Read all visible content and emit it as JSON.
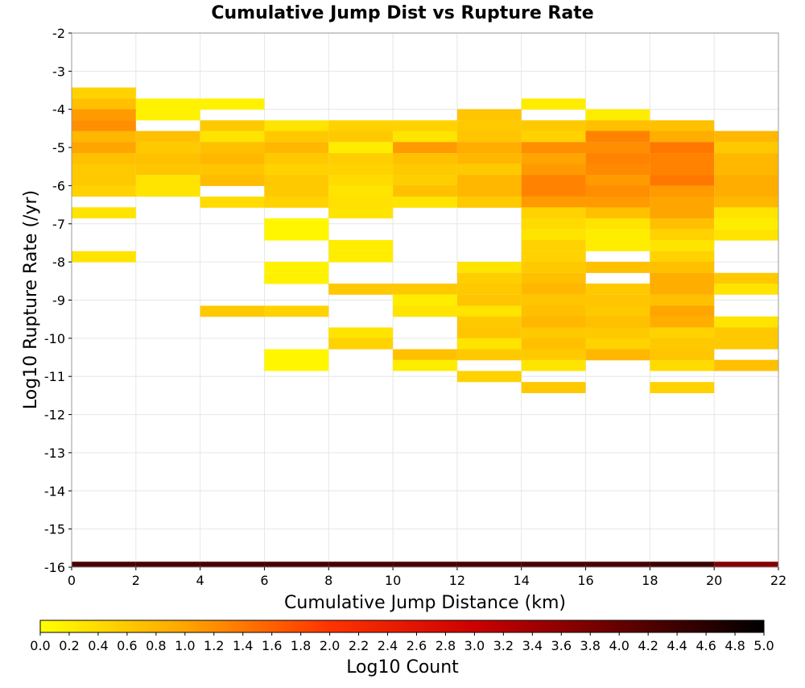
{
  "chart_data": {
    "type": "heatmap",
    "title": "Cumulative Jump Dist vs Rupture Rate",
    "xlabel": "Cumulative Jump Distance (km)",
    "ylabel": "Log10 Rupture Rate (/yr)",
    "xlim": [
      0,
      22
    ],
    "ylim": [
      -16,
      -2
    ],
    "x_ticks": [
      "0",
      "2",
      "4",
      "6",
      "8",
      "10",
      "12",
      "14",
      "16",
      "18",
      "20",
      "22"
    ],
    "y_ticks": [
      "-2",
      "-3",
      "-4",
      "-5",
      "-6",
      "-7",
      "-8",
      "-9",
      "-10",
      "-11",
      "-12",
      "-13",
      "-14",
      "-15",
      "-16"
    ],
    "grid": true,
    "bin_width_x": 2,
    "bin_height_y": 0.2857,
    "colorbar": {
      "label": "Log10 Count",
      "range": [
        0,
        5
      ],
      "ticks": [
        "0.0",
        "0.2",
        "0.4",
        "0.6",
        "0.8",
        "1.0",
        "1.2",
        "1.4",
        "1.6",
        "1.8",
        "2.0",
        "2.2",
        "2.4",
        "2.6",
        "2.8",
        "3.0",
        "3.2",
        "3.4",
        "3.6",
        "3.8",
        "4.0",
        "4.2",
        "4.4",
        "4.6",
        "4.8",
        "5.0"
      ],
      "colors": [
        "#ffff00",
        "#ffa500",
        "#ff3300",
        "#cc0000",
        "#660000",
        "#000000"
      ]
    },
    "cells": [
      {
        "x": 0,
        "y": -3.57,
        "v": 0.5
      },
      {
        "x": 0,
        "y": -3.86,
        "v": 0.7
      },
      {
        "x": 0,
        "y": -4.14,
        "v": 1.1
      },
      {
        "x": 0,
        "y": -4.43,
        "v": 1.2
      },
      {
        "x": 0,
        "y": -4.71,
        "v": 0.8
      },
      {
        "x": 0,
        "y": -5.0,
        "v": 1.0
      },
      {
        "x": 0,
        "y": -5.29,
        "v": 0.7
      },
      {
        "x": 0,
        "y": -5.57,
        "v": 0.6
      },
      {
        "x": 0,
        "y": -5.86,
        "v": 0.6
      },
      {
        "x": 0,
        "y": -6.14,
        "v": 0.5
      },
      {
        "x": 0,
        "y": -6.71,
        "v": 0.3
      },
      {
        "x": 0,
        "y": -7.86,
        "v": 0.3
      },
      {
        "x": 0,
        "y": -16.0,
        "v": 4.3
      },
      {
        "x": 2,
        "y": -3.86,
        "v": 0.15
      },
      {
        "x": 2,
        "y": -4.14,
        "v": 0.15
      },
      {
        "x": 2,
        "y": -4.71,
        "v": 0.7
      },
      {
        "x": 2,
        "y": -5.0,
        "v": 0.6
      },
      {
        "x": 2,
        "y": -5.29,
        "v": 0.7
      },
      {
        "x": 2,
        "y": -5.57,
        "v": 0.65
      },
      {
        "x": 2,
        "y": -5.86,
        "v": 0.3
      },
      {
        "x": 2,
        "y": -6.14,
        "v": 0.3
      },
      {
        "x": 2,
        "y": -16.0,
        "v": 4.3
      },
      {
        "x": 4,
        "y": -3.86,
        "v": 0.15
      },
      {
        "x": 4,
        "y": -4.43,
        "v": 0.6
      },
      {
        "x": 4,
        "y": -4.71,
        "v": 0.3
      },
      {
        "x": 4,
        "y": -5.0,
        "v": 0.7
      },
      {
        "x": 4,
        "y": -5.29,
        "v": 0.8
      },
      {
        "x": 4,
        "y": -5.57,
        "v": 0.65
      },
      {
        "x": 4,
        "y": -5.86,
        "v": 0.75
      },
      {
        "x": 4,
        "y": -6.43,
        "v": 0.4
      },
      {
        "x": 4,
        "y": -9.29,
        "v": 0.6
      },
      {
        "x": 4,
        "y": -16.0,
        "v": 4.3
      },
      {
        "x": 6,
        "y": -4.43,
        "v": 0.3
      },
      {
        "x": 6,
        "y": -4.71,
        "v": 0.6
      },
      {
        "x": 6,
        "y": -5.0,
        "v": 0.8
      },
      {
        "x": 6,
        "y": -5.29,
        "v": 0.6
      },
      {
        "x": 6,
        "y": -5.57,
        "v": 0.5
      },
      {
        "x": 6,
        "y": -5.86,
        "v": 0.6
      },
      {
        "x": 6,
        "y": -6.14,
        "v": 0.6
      },
      {
        "x": 6,
        "y": -6.43,
        "v": 0.5
      },
      {
        "x": 6,
        "y": -7.0,
        "v": 0.1
      },
      {
        "x": 6,
        "y": -7.29,
        "v": 0.1
      },
      {
        "x": 6,
        "y": -8.14,
        "v": 0.15
      },
      {
        "x": 6,
        "y": -8.43,
        "v": 0.15
      },
      {
        "x": 6,
        "y": -9.29,
        "v": 0.5
      },
      {
        "x": 6,
        "y": -10.43,
        "v": 0.1
      },
      {
        "x": 6,
        "y": -10.71,
        "v": 0.1
      },
      {
        "x": 6,
        "y": -16.0,
        "v": 4.3
      },
      {
        "x": 8,
        "y": -4.43,
        "v": 0.5
      },
      {
        "x": 8,
        "y": -4.71,
        "v": 0.6
      },
      {
        "x": 8,
        "y": -5.0,
        "v": 0.2
      },
      {
        "x": 8,
        "y": -5.29,
        "v": 0.55
      },
      {
        "x": 8,
        "y": -5.57,
        "v": 0.5
      },
      {
        "x": 8,
        "y": -5.86,
        "v": 0.4
      },
      {
        "x": 8,
        "y": -6.14,
        "v": 0.3
      },
      {
        "x": 8,
        "y": -6.43,
        "v": 0.35
      },
      {
        "x": 8,
        "y": -6.71,
        "v": 0.3
      },
      {
        "x": 8,
        "y": -7.57,
        "v": 0.2
      },
      {
        "x": 8,
        "y": -7.86,
        "v": 0.2
      },
      {
        "x": 8,
        "y": -8.71,
        "v": 0.6
      },
      {
        "x": 8,
        "y": -9.86,
        "v": 0.3
      },
      {
        "x": 8,
        "y": -10.14,
        "v": 0.5
      },
      {
        "x": 8,
        "y": -16.0,
        "v": 4.3
      },
      {
        "x": 10,
        "y": -4.43,
        "v": 0.5
      },
      {
        "x": 10,
        "y": -4.71,
        "v": 0.3
      },
      {
        "x": 10,
        "y": -5.0,
        "v": 1.1
      },
      {
        "x": 10,
        "y": -5.29,
        "v": 0.7
      },
      {
        "x": 10,
        "y": -5.57,
        "v": 0.6
      },
      {
        "x": 10,
        "y": -5.86,
        "v": 0.55
      },
      {
        "x": 10,
        "y": -6.14,
        "v": 0.7
      },
      {
        "x": 10,
        "y": -6.43,
        "v": 0.3
      },
      {
        "x": 10,
        "y": -8.71,
        "v": 0.6
      },
      {
        "x": 10,
        "y": -9.0,
        "v": 0.2
      },
      {
        "x": 10,
        "y": -9.29,
        "v": 0.3
      },
      {
        "x": 10,
        "y": -10.43,
        "v": 0.7
      },
      {
        "x": 10,
        "y": -10.71,
        "v": 0.2
      },
      {
        "x": 10,
        "y": -16.0,
        "v": 4.3
      },
      {
        "x": 12,
        "y": -4.14,
        "v": 0.65
      },
      {
        "x": 12,
        "y": -4.43,
        "v": 0.6
      },
      {
        "x": 12,
        "y": -4.71,
        "v": 0.65
      },
      {
        "x": 12,
        "y": -5.0,
        "v": 0.9
      },
      {
        "x": 12,
        "y": -5.29,
        "v": 0.8
      },
      {
        "x": 12,
        "y": -5.57,
        "v": 0.6
      },
      {
        "x": 12,
        "y": -5.86,
        "v": 0.8
      },
      {
        "x": 12,
        "y": -6.14,
        "v": 0.8
      },
      {
        "x": 12,
        "y": -6.43,
        "v": 0.6
      },
      {
        "x": 12,
        "y": -8.14,
        "v": 0.3
      },
      {
        "x": 12,
        "y": -8.43,
        "v": 0.55
      },
      {
        "x": 12,
        "y": -8.71,
        "v": 0.6
      },
      {
        "x": 12,
        "y": -9.0,
        "v": 0.65
      },
      {
        "x": 12,
        "y": -9.29,
        "v": 0.3
      },
      {
        "x": 12,
        "y": -9.57,
        "v": 0.6
      },
      {
        "x": 12,
        "y": -9.86,
        "v": 0.65
      },
      {
        "x": 12,
        "y": -10.14,
        "v": 0.3
      },
      {
        "x": 12,
        "y": -10.43,
        "v": 0.6
      },
      {
        "x": 12,
        "y": -11.0,
        "v": 0.5
      },
      {
        "x": 12,
        "y": -16.0,
        "v": 4.3
      },
      {
        "x": 14,
        "y": -3.86,
        "v": 0.2
      },
      {
        "x": 14,
        "y": -4.43,
        "v": 0.6
      },
      {
        "x": 14,
        "y": -4.71,
        "v": 0.5
      },
      {
        "x": 14,
        "y": -5.0,
        "v": 1.2
      },
      {
        "x": 14,
        "y": -5.29,
        "v": 1.0
      },
      {
        "x": 14,
        "y": -5.57,
        "v": 1.1
      },
      {
        "x": 14,
        "y": -5.86,
        "v": 1.3
      },
      {
        "x": 14,
        "y": -6.14,
        "v": 1.3
      },
      {
        "x": 14,
        "y": -6.43,
        "v": 1.1
      },
      {
        "x": 14,
        "y": -6.71,
        "v": 0.5
      },
      {
        "x": 14,
        "y": -7.0,
        "v": 0.4
      },
      {
        "x": 14,
        "y": -7.29,
        "v": 0.3
      },
      {
        "x": 14,
        "y": -7.57,
        "v": 0.5
      },
      {
        "x": 14,
        "y": -7.86,
        "v": 0.5
      },
      {
        "x": 14,
        "y": -8.14,
        "v": 0.6
      },
      {
        "x": 14,
        "y": -8.43,
        "v": 0.7
      },
      {
        "x": 14,
        "y": -8.71,
        "v": 0.8
      },
      {
        "x": 14,
        "y": -9.0,
        "v": 0.65
      },
      {
        "x": 14,
        "y": -9.29,
        "v": 0.7
      },
      {
        "x": 14,
        "y": -9.57,
        "v": 0.8
      },
      {
        "x": 14,
        "y": -9.86,
        "v": 0.6
      },
      {
        "x": 14,
        "y": -10.14,
        "v": 0.7
      },
      {
        "x": 14,
        "y": -10.43,
        "v": 0.6
      },
      {
        "x": 14,
        "y": -10.71,
        "v": 0.3
      },
      {
        "x": 14,
        "y": -11.29,
        "v": 0.6
      },
      {
        "x": 14,
        "y": -16.0,
        "v": 4.3
      },
      {
        "x": 16,
        "y": -4.14,
        "v": 0.2
      },
      {
        "x": 16,
        "y": -4.43,
        "v": 0.7
      },
      {
        "x": 16,
        "y": -4.71,
        "v": 1.3
      },
      {
        "x": 16,
        "y": -5.0,
        "v": 1.2
      },
      {
        "x": 16,
        "y": -5.29,
        "v": 1.3
      },
      {
        "x": 16,
        "y": -5.57,
        "v": 1.25
      },
      {
        "x": 16,
        "y": -5.86,
        "v": 1.1
      },
      {
        "x": 16,
        "y": -6.14,
        "v": 1.2
      },
      {
        "x": 16,
        "y": -6.43,
        "v": 1.1
      },
      {
        "x": 16,
        "y": -6.71,
        "v": 0.7
      },
      {
        "x": 16,
        "y": -7.0,
        "v": 0.3
      },
      {
        "x": 16,
        "y": -7.29,
        "v": 0.2
      },
      {
        "x": 16,
        "y": -7.57,
        "v": 0.2
      },
      {
        "x": 16,
        "y": -8.14,
        "v": 0.7
      },
      {
        "x": 16,
        "y": -8.71,
        "v": 0.6
      },
      {
        "x": 16,
        "y": -9.0,
        "v": 0.65
      },
      {
        "x": 16,
        "y": -9.29,
        "v": 0.6
      },
      {
        "x": 16,
        "y": -9.57,
        "v": 0.7
      },
      {
        "x": 16,
        "y": -9.86,
        "v": 0.6
      },
      {
        "x": 16,
        "y": -10.14,
        "v": 0.5
      },
      {
        "x": 16,
        "y": -10.43,
        "v": 0.8
      },
      {
        "x": 16,
        "y": -16.0,
        "v": 4.3
      },
      {
        "x": 18,
        "y": -4.43,
        "v": 0.7
      },
      {
        "x": 18,
        "y": -4.71,
        "v": 0.9
      },
      {
        "x": 18,
        "y": -5.0,
        "v": 1.4
      },
      {
        "x": 18,
        "y": -5.29,
        "v": 1.3
      },
      {
        "x": 18,
        "y": -5.57,
        "v": 1.3
      },
      {
        "x": 18,
        "y": -5.86,
        "v": 1.4
      },
      {
        "x": 18,
        "y": -6.14,
        "v": 1.1
      },
      {
        "x": 18,
        "y": -6.43,
        "v": 1.0
      },
      {
        "x": 18,
        "y": -6.71,
        "v": 1.0
      },
      {
        "x": 18,
        "y": -7.0,
        "v": 0.7
      },
      {
        "x": 18,
        "y": -7.29,
        "v": 0.5
      },
      {
        "x": 18,
        "y": -7.57,
        "v": 0.3
      },
      {
        "x": 18,
        "y": -7.86,
        "v": 0.5
      },
      {
        "x": 18,
        "y": -8.14,
        "v": 0.7
      },
      {
        "x": 18,
        "y": -8.43,
        "v": 0.9
      },
      {
        "x": 18,
        "y": -8.71,
        "v": 0.9
      },
      {
        "x": 18,
        "y": -9.0,
        "v": 0.7
      },
      {
        "x": 18,
        "y": -9.29,
        "v": 1.0
      },
      {
        "x": 18,
        "y": -9.57,
        "v": 0.9
      },
      {
        "x": 18,
        "y": -9.86,
        "v": 0.5
      },
      {
        "x": 18,
        "y": -10.14,
        "v": 0.6
      },
      {
        "x": 18,
        "y": -10.43,
        "v": 0.65
      },
      {
        "x": 18,
        "y": -10.71,
        "v": 0.4
      },
      {
        "x": 18,
        "y": -11.29,
        "v": 0.5
      },
      {
        "x": 18,
        "y": -16.0,
        "v": 4.4
      },
      {
        "x": 20,
        "y": -4.71,
        "v": 0.8
      },
      {
        "x": 20,
        "y": -5.0,
        "v": 0.6
      },
      {
        "x": 20,
        "y": -5.29,
        "v": 0.8
      },
      {
        "x": 20,
        "y": -5.57,
        "v": 0.8
      },
      {
        "x": 20,
        "y": -5.86,
        "v": 0.9
      },
      {
        "x": 20,
        "y": -6.14,
        "v": 0.9
      },
      {
        "x": 20,
        "y": -6.43,
        "v": 0.8
      },
      {
        "x": 20,
        "y": -6.71,
        "v": 0.3
      },
      {
        "x": 20,
        "y": -7.0,
        "v": 0.2
      },
      {
        "x": 20,
        "y": -7.29,
        "v": 0.3
      },
      {
        "x": 20,
        "y": -8.43,
        "v": 0.6
      },
      {
        "x": 20,
        "y": -8.71,
        "v": 0.3
      },
      {
        "x": 20,
        "y": -9.57,
        "v": 0.3
      },
      {
        "x": 20,
        "y": -9.86,
        "v": 0.6
      },
      {
        "x": 20,
        "y": -10.14,
        "v": 0.6
      },
      {
        "x": 20,
        "y": -10.71,
        "v": 0.7
      },
      {
        "x": 20,
        "y": -16.0,
        "v": 3.7
      }
    ]
  }
}
